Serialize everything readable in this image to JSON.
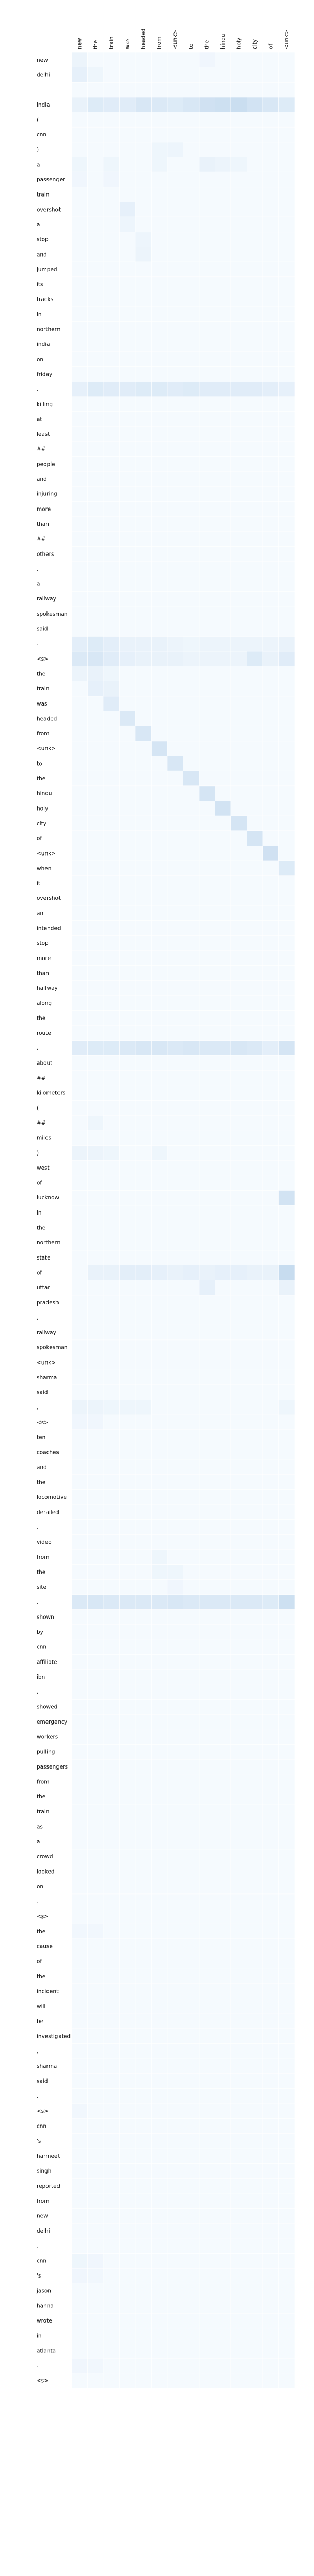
{
  "chart_data": {
    "type": "heatmap",
    "title": "",
    "xlabel": "",
    "ylabel": "",
    "x": [
      "new",
      "the",
      "train",
      "was",
      "headed",
      "from",
      "<unk>",
      "to",
      "the",
      "hindu",
      "holy",
      "city",
      "of",
      "<unk>"
    ],
    "y": [
      "new",
      "delhi",
      "",
      "india",
      "(",
      "cnn",
      ")",
      "a",
      "passenger",
      "train",
      "overshot",
      "a",
      "stop",
      "and",
      "jumped",
      "its",
      "tracks",
      "in",
      "northern",
      "india",
      "on",
      "friday",
      ",",
      "killing",
      "at",
      "least",
      "##",
      "people",
      "and",
      "injuring",
      "more",
      "than",
      "##",
      "others",
      ",",
      "a",
      "railway",
      "spokesman",
      "said",
      ".",
      "<s>",
      "the",
      "train",
      "was",
      "headed",
      "from",
      "<unk>",
      "to",
      "the",
      "hindu",
      "holy",
      "city",
      "of",
      "<unk>",
      "when",
      "it",
      "overshot",
      "an",
      "intended",
      "stop",
      "more",
      "than",
      "halfway",
      "along",
      "the",
      "route",
      ",",
      "about",
      "##",
      "kilometers",
      "(",
      "##",
      "miles",
      ")",
      "west",
      "of",
      "lucknow",
      "in",
      "the",
      "northern",
      "state",
      "of",
      "uttar",
      "pradesh",
      ",",
      "railway",
      "spokesman",
      "<unk>",
      "sharma",
      "said",
      ".",
      "<s>",
      "ten",
      "coaches",
      "and",
      "the",
      "locomotive",
      "derailed",
      ".",
      "video",
      "from",
      "the",
      "site",
      ",",
      "shown",
      "by",
      "cnn",
      "affiliate",
      "ibn",
      ",",
      "showed",
      "emergency",
      "workers",
      "pulling",
      "passengers",
      "from",
      "the",
      "train",
      "as",
      "a",
      "crowd",
      "looked",
      "on",
      ".",
      "<s>",
      "the",
      "cause",
      "of",
      "the",
      "incident",
      "will",
      "be",
      "investigated",
      ",",
      "sharma",
      "said",
      ".",
      "<s>",
      "cnn",
      "'s",
      "harmeet",
      "singh",
      "reported",
      "from",
      "new",
      "delhi",
      ".",
      "cnn",
      "'s",
      "jason",
      "hanna",
      "wrote",
      "in",
      "atlanta",
      ".",
      "<s>"
    ],
    "colormap": [
      "#f7fbff",
      "#deebf7",
      "#c6dbef"
    ],
    "cell_border": "#ffffff",
    "highlights": [
      {
        "row": 0,
        "col": 0,
        "v": 0.08
      },
      {
        "row": 0,
        "col": 8,
        "v": 0.05
      },
      {
        "row": 1,
        "col": 0,
        "v": 0.12
      },
      {
        "row": 1,
        "col": 1,
        "v": 0.06
      },
      {
        "row": 3,
        "col": 0,
        "v": 0.1
      },
      {
        "row": 3,
        "col": 1,
        "v": 0.18
      },
      {
        "row": 3,
        "col": 2,
        "v": 0.16
      },
      {
        "row": 3,
        "col": 3,
        "v": 0.16
      },
      {
        "row": 3,
        "col": 4,
        "v": 0.22
      },
      {
        "row": 3,
        "col": 5,
        "v": 0.2
      },
      {
        "row": 3,
        "col": 6,
        "v": 0.18
      },
      {
        "row": 3,
        "col": 7,
        "v": 0.22
      },
      {
        "row": 3,
        "col": 8,
        "v": 0.28
      },
      {
        "row": 3,
        "col": 9,
        "v": 0.3
      },
      {
        "row": 3,
        "col": 10,
        "v": 0.32
      },
      {
        "row": 3,
        "col": 11,
        "v": 0.26
      },
      {
        "row": 3,
        "col": 12,
        "v": 0.22
      },
      {
        "row": 3,
        "col": 13,
        "v": 0.18
      },
      {
        "row": 6,
        "col": 5,
        "v": 0.06
      },
      {
        "row": 6,
        "col": 6,
        "v": 0.07
      },
      {
        "row": 7,
        "col": 0,
        "v": 0.06
      },
      {
        "row": 7,
        "col": 2,
        "v": 0.06
      },
      {
        "row": 7,
        "col": 5,
        "v": 0.06
      },
      {
        "row": 7,
        "col": 8,
        "v": 0.1
      },
      {
        "row": 7,
        "col": 9,
        "v": 0.08
      },
      {
        "row": 7,
        "col": 10,
        "v": 0.06
      },
      {
        "row": 8,
        "col": 0,
        "v": 0.05
      },
      {
        "row": 8,
        "col": 2,
        "v": 0.05
      },
      {
        "row": 10,
        "col": 3,
        "v": 0.12
      },
      {
        "row": 11,
        "col": 3,
        "v": 0.07
      },
      {
        "row": 12,
        "col": 4,
        "v": 0.07
      },
      {
        "row": 13,
        "col": 4,
        "v": 0.08
      },
      {
        "row": 22,
        "col": 0,
        "v": 0.12
      },
      {
        "row": 22,
        "col": 1,
        "v": 0.18
      },
      {
        "row": 22,
        "col": 2,
        "v": 0.16
      },
      {
        "row": 22,
        "col": 3,
        "v": 0.16
      },
      {
        "row": 22,
        "col": 4,
        "v": 0.18
      },
      {
        "row": 22,
        "col": 5,
        "v": 0.18
      },
      {
        "row": 22,
        "col": 6,
        "v": 0.16
      },
      {
        "row": 22,
        "col": 7,
        "v": 0.18
      },
      {
        "row": 22,
        "col": 8,
        "v": 0.16
      },
      {
        "row": 22,
        "col": 9,
        "v": 0.16
      },
      {
        "row": 22,
        "col": 10,
        "v": 0.16
      },
      {
        "row": 22,
        "col": 11,
        "v": 0.16
      },
      {
        "row": 22,
        "col": 12,
        "v": 0.14
      },
      {
        "row": 22,
        "col": 13,
        "v": 0.12
      },
      {
        "row": 39,
        "col": 0,
        "v": 0.14
      },
      {
        "row": 39,
        "col": 1,
        "v": 0.18
      },
      {
        "row": 39,
        "col": 2,
        "v": 0.14
      },
      {
        "row": 39,
        "col": 3,
        "v": 0.1
      },
      {
        "row": 39,
        "col": 4,
        "v": 0.1
      },
      {
        "row": 39,
        "col": 5,
        "v": 0.1
      },
      {
        "row": 39,
        "col": 6,
        "v": 0.08
      },
      {
        "row": 39,
        "col": 7,
        "v": 0.06
      },
      {
        "row": 39,
        "col": 8,
        "v": 0.08
      },
      {
        "row": 39,
        "col": 9,
        "v": 0.08
      },
      {
        "row": 39,
        "col": 10,
        "v": 0.08
      },
      {
        "row": 39,
        "col": 11,
        "v": 0.08
      },
      {
        "row": 39,
        "col": 12,
        "v": 0.08
      },
      {
        "row": 39,
        "col": 13,
        "v": 0.1
      },
      {
        "row": 40,
        "col": 0,
        "v": 0.2
      },
      {
        "row": 40,
        "col": 1,
        "v": 0.22
      },
      {
        "row": 40,
        "col": 2,
        "v": 0.16
      },
      {
        "row": 40,
        "col": 3,
        "v": 0.12
      },
      {
        "row": 40,
        "col": 4,
        "v": 0.1
      },
      {
        "row": 40,
        "col": 5,
        "v": 0.1
      },
      {
        "row": 40,
        "col": 6,
        "v": 0.1
      },
      {
        "row": 40,
        "col": 7,
        "v": 0.08
      },
      {
        "row": 40,
        "col": 8,
        "v": 0.08
      },
      {
        "row": 40,
        "col": 9,
        "v": 0.08
      },
      {
        "row": 40,
        "col": 10,
        "v": 0.08
      },
      {
        "row": 40,
        "col": 11,
        "v": 0.18
      },
      {
        "row": 40,
        "col": 12,
        "v": 0.1
      },
      {
        "row": 40,
        "col": 13,
        "v": 0.16
      },
      {
        "row": 41,
        "col": 0,
        "v": 0.08
      },
      {
        "row": 41,
        "col": 1,
        "v": 0.1
      },
      {
        "row": 41,
        "col": 2,
        "v": 0.06
      },
      {
        "row": 42,
        "col": 1,
        "v": 0.12
      },
      {
        "row": 42,
        "col": 2,
        "v": 0.1
      },
      {
        "row": 43,
        "col": 2,
        "v": 0.16
      },
      {
        "row": 44,
        "col": 3,
        "v": 0.2
      },
      {
        "row": 45,
        "col": 4,
        "v": 0.22
      },
      {
        "row": 46,
        "col": 5,
        "v": 0.24
      },
      {
        "row": 47,
        "col": 6,
        "v": 0.22
      },
      {
        "row": 48,
        "col": 7,
        "v": 0.22
      },
      {
        "row": 49,
        "col": 8,
        "v": 0.24
      },
      {
        "row": 50,
        "col": 9,
        "v": 0.26
      },
      {
        "row": 51,
        "col": 10,
        "v": 0.24
      },
      {
        "row": 52,
        "col": 11,
        "v": 0.24
      },
      {
        "row": 53,
        "col": 12,
        "v": 0.28
      },
      {
        "row": 54,
        "col": 13,
        "v": 0.18
      },
      {
        "row": 66,
        "col": 0,
        "v": 0.16
      },
      {
        "row": 66,
        "col": 1,
        "v": 0.18
      },
      {
        "row": 66,
        "col": 2,
        "v": 0.18
      },
      {
        "row": 66,
        "col": 3,
        "v": 0.2
      },
      {
        "row": 66,
        "col": 4,
        "v": 0.22
      },
      {
        "row": 66,
        "col": 5,
        "v": 0.22
      },
      {
        "row": 66,
        "col": 6,
        "v": 0.2
      },
      {
        "row": 66,
        "col": 7,
        "v": 0.22
      },
      {
        "row": 66,
        "col": 8,
        "v": 0.2
      },
      {
        "row": 66,
        "col": 9,
        "v": 0.2
      },
      {
        "row": 66,
        "col": 10,
        "v": 0.22
      },
      {
        "row": 66,
        "col": 11,
        "v": 0.2
      },
      {
        "row": 66,
        "col": 12,
        "v": 0.14
      },
      {
        "row": 66,
        "col": 13,
        "v": 0.24
      },
      {
        "row": 71,
        "col": 1,
        "v": 0.06
      },
      {
        "row": 73,
        "col": 0,
        "v": 0.08
      },
      {
        "row": 73,
        "col": 1,
        "v": 0.08
      },
      {
        "row": 73,
        "col": 2,
        "v": 0.06
      },
      {
        "row": 73,
        "col": 5,
        "v": 0.06
      },
      {
        "row": 76,
        "col": 13,
        "v": 0.26
      },
      {
        "row": 81,
        "col": 1,
        "v": 0.1
      },
      {
        "row": 81,
        "col": 2,
        "v": 0.1
      },
      {
        "row": 81,
        "col": 3,
        "v": 0.14
      },
      {
        "row": 81,
        "col": 4,
        "v": 0.14
      },
      {
        "row": 81,
        "col": 5,
        "v": 0.12
      },
      {
        "row": 81,
        "col": 6,
        "v": 0.1
      },
      {
        "row": 81,
        "col": 7,
        "v": 0.12
      },
      {
        "row": 81,
        "col": 8,
        "v": 0.1
      },
      {
        "row": 81,
        "col": 9,
        "v": 0.12
      },
      {
        "row": 81,
        "col": 10,
        "v": 0.12
      },
      {
        "row": 81,
        "col": 11,
        "v": 0.1
      },
      {
        "row": 81,
        "col": 12,
        "v": 0.1
      },
      {
        "row": 81,
        "col": 13,
        "v": 0.34
      },
      {
        "row": 82,
        "col": 8,
        "v": 0.12
      },
      {
        "row": 82,
        "col": 13,
        "v": 0.1
      },
      {
        "row": 90,
        "col": 0,
        "v": 0.08
      },
      {
        "row": 90,
        "col": 1,
        "v": 0.08
      },
      {
        "row": 90,
        "col": 2,
        "v": 0.06
      },
      {
        "row": 90,
        "col": 3,
        "v": 0.06
      },
      {
        "row": 90,
        "col": 4,
        "v": 0.06
      },
      {
        "row": 90,
        "col": 13,
        "v": 0.06
      },
      {
        "row": 91,
        "col": 0,
        "v": 0.05
      },
      {
        "row": 91,
        "col": 1,
        "v": 0.05
      },
      {
        "row": 100,
        "col": 5,
        "v": 0.06
      },
      {
        "row": 101,
        "col": 5,
        "v": 0.06
      },
      {
        "row": 101,
        "col": 6,
        "v": 0.06
      },
      {
        "row": 102,
        "col": 6,
        "v": 0.05
      },
      {
        "row": 103,
        "col": 0,
        "v": 0.2
      },
      {
        "row": 103,
        "col": 1,
        "v": 0.22
      },
      {
        "row": 103,
        "col": 2,
        "v": 0.2
      },
      {
        "row": 103,
        "col": 3,
        "v": 0.2
      },
      {
        "row": 103,
        "col": 4,
        "v": 0.2
      },
      {
        "row": 103,
        "col": 5,
        "v": 0.2
      },
      {
        "row": 103,
        "col": 6,
        "v": 0.22
      },
      {
        "row": 103,
        "col": 7,
        "v": 0.2
      },
      {
        "row": 103,
        "col": 8,
        "v": 0.2
      },
      {
        "row": 103,
        "col": 9,
        "v": 0.2
      },
      {
        "row": 103,
        "col": 10,
        "v": 0.2
      },
      {
        "row": 103,
        "col": 11,
        "v": 0.2
      },
      {
        "row": 103,
        "col": 12,
        "v": 0.18
      },
      {
        "row": 103,
        "col": 13,
        "v": 0.3
      },
      {
        "row": 125,
        "col": 0,
        "v": 0.04
      },
      {
        "row": 125,
        "col": 1,
        "v": 0.04
      },
      {
        "row": 137,
        "col": 0,
        "v": 0.04
      },
      {
        "row": 147,
        "col": 0,
        "v": 0.06
      },
      {
        "row": 147,
        "col": 1,
        "v": 0.05
      },
      {
        "row": 148,
        "col": 0,
        "v": 0.05
      },
      {
        "row": 148,
        "col": 1,
        "v": 0.04
      },
      {
        "row": 154,
        "col": 0,
        "v": 0.05
      },
      {
        "row": 154,
        "col": 1,
        "v": 0.04
      },
      {
        "row": 156,
        "col": 0,
        "v": 0.04
      },
      {
        "row": 161,
        "col": 0,
        "v": 0.05
      },
      {
        "row": 161,
        "col": 1,
        "v": 0.05
      }
    ]
  }
}
